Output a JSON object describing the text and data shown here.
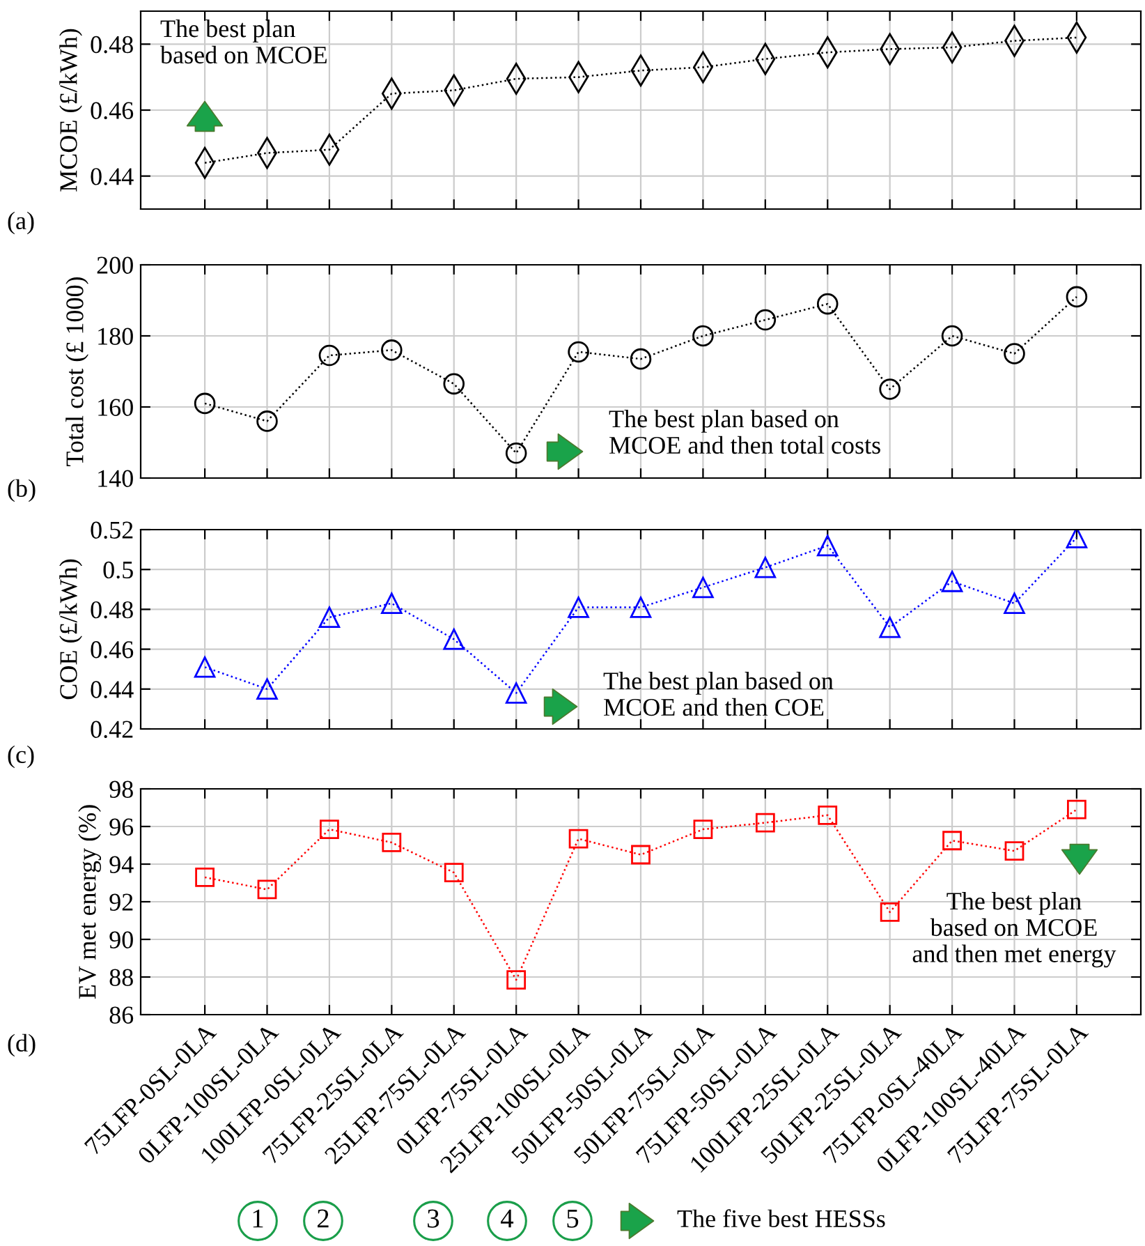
{
  "chart_data": [
    {
      "type": "line",
      "ylabel": "MCOE (£/kWh)",
      "categories": [
        null,
        null,
        null,
        null,
        null,
        null,
        null,
        null,
        null,
        null,
        null,
        null,
        null,
        null,
        null
      ],
      "series": [
        {
          "color": "#000000",
          "values": [
            0.444,
            0.447,
            0.448,
            0.465,
            0.466,
            0.4695,
            0.47,
            0.472,
            0.473,
            0.4755,
            0.4775,
            0.4785,
            0.479,
            0.481,
            0.482
          ]
        }
      ],
      "ylim": [
        0.43,
        0.49
      ],
      "yticks": [
        0.44,
        0.46,
        0.48
      ],
      "grid": true,
      "tick_labels": "y",
      "marker": "diamond",
      "line_style": "dotted",
      "annotations": [
        "(a)",
        "The best plan\nbased on MCOE"
      ]
    },
    {
      "type": "line",
      "ylabel": "Total cost (£ 1000)",
      "categories": [
        null,
        null,
        null,
        null,
        null,
        null,
        null,
        null,
        null,
        null,
        null,
        null,
        null,
        null,
        null
      ],
      "series": [
        {
          "color": "#000000",
          "values": [
            161,
            156,
            174.5,
            176,
            166.5,
            147,
            175.5,
            173.5,
            180,
            184.5,
            189,
            165,
            180,
            175,
            191
          ]
        }
      ],
      "ylim": [
        140,
        200
      ],
      "yticks": [
        140,
        160,
        180,
        200
      ],
      "grid": true,
      "tick_labels": "y",
      "marker": "circle",
      "line_style": "dotted",
      "annotations": [
        "(b)",
        "The best plan based on\nMCOE and then total costs"
      ]
    },
    {
      "type": "line",
      "ylabel": "COE (£/kWh)",
      "categories": [
        null,
        null,
        null,
        null,
        null,
        null,
        null,
        null,
        null,
        null,
        null,
        null,
        null,
        null,
        null
      ],
      "series": [
        {
          "color": "#0000ff",
          "values": [
            0.451,
            0.44,
            0.476,
            0.483,
            0.465,
            0.438,
            0.481,
            0.481,
            0.491,
            0.501,
            0.512,
            0.471,
            0.494,
            0.483,
            0.516
          ]
        }
      ],
      "ylim": [
        0.42,
        0.52
      ],
      "yticks": [
        0.42,
        0.44,
        0.46,
        0.48,
        0.5,
        0.52
      ],
      "grid": true,
      "tick_labels": "y",
      "marker": "triangle",
      "line_style": "dotted",
      "annotations": [
        "(c)",
        "The best plan based on\nMCOE and then COE"
      ]
    },
    {
      "type": "line",
      "ylabel": "EV met energy (%)",
      "categories": [
        "75LFP-0SL-0LA",
        "0LFP-100SL-0LA",
        "100LFP-0SL-0LA",
        "75LFP-25SL-0LA",
        "25LFP-75SL-0LA",
        "0LFP-75SL-0LA",
        "25LFP-100SL-0LA",
        "50LFP-50SL-0LA",
        "50LFP-75SL-0LA",
        "75LFP-50SL-0LA",
        "100LFP-25SL-0LA",
        "50LFP-25SL-0LA",
        "75LFP-0SL-40LA",
        "0LFP-100SL-40LA",
        "75LFP-75SL-0LA"
      ],
      "series": [
        {
          "color": "#ff0000",
          "values": [
            93.3,
            92.65,
            95.85,
            95.15,
            93.55,
            87.85,
            95.35,
            94.5,
            95.85,
            96.2,
            96.6,
            91.45,
            95.25,
            94.7,
            96.9
          ]
        }
      ],
      "ylim": [
        86,
        98
      ],
      "yticks": [
        86,
        88,
        90,
        92,
        94,
        96,
        98
      ],
      "grid": true,
      "marker": "square",
      "line_style": "dotted",
      "annotations": [
        "(d)",
        "The best plan\nbased on MCOE\nand then met energy",
        "1",
        "2",
        "3",
        "4",
        "5",
        "The five best HESSs"
      ]
    }
  ]
}
